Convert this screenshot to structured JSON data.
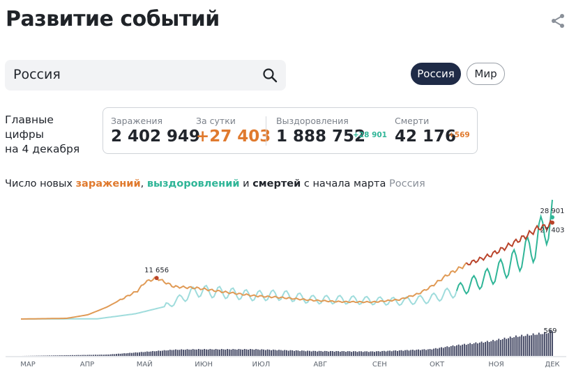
{
  "header": {
    "title": "Развитие событий"
  },
  "search": {
    "value": "Россия"
  },
  "region_tabs": [
    "Россия",
    "Мир"
  ],
  "summary": {
    "lead_line1": "Главные цифры",
    "lead_line2": "на 4 декабря",
    "cases": {
      "label": "Заражения",
      "value": "2 402 949"
    },
    "daily": {
      "label": "За сутки",
      "value": "+27 403"
    },
    "recovered": {
      "label": "Выздоровления",
      "value": "1 888 752",
      "delta": "+28 901"
    },
    "deaths": {
      "label": "Смерти",
      "value": "42 176",
      "delta": "+569"
    }
  },
  "caption": {
    "part1": "Число новых ",
    "infections": "заражений",
    "comma": ", ",
    "recoveries": "выздоровлений",
    "and": " и ",
    "deaths": "смертей",
    "part2": " с начала марта",
    "region": "Россия"
  },
  "colors": {
    "infections": "#e09a55",
    "infections_late": "#b9432a",
    "recoveries_early": "#9fdcdc",
    "recoveries_late": "#2fb597",
    "deaths": "#3a3f5c",
    "infections_text": "#e07a2e",
    "recoveries_text": "#2fb597",
    "accent_dark": "#1f2b47"
  },
  "chart_data": {
    "type": "line",
    "x_range": [
      "2020-03-01",
      "2020-12-04"
    ],
    "month_labels": [
      "МАР",
      "АПР",
      "МАЙ",
      "ИЮН",
      "ИЮЛ",
      "АВГ",
      "СЕН",
      "ОКТ",
      "НОЯ",
      "ДЕК"
    ],
    "infections": {
      "x": [
        "2020-03-01",
        "2020-03-25",
        "2020-04-05",
        "2020-04-15",
        "2020-04-25",
        "2020-05-01",
        "2020-05-05",
        "2020-05-11",
        "2020-05-20",
        "2020-06-01",
        "2020-06-15",
        "2020-07-01",
        "2020-07-15",
        "2020-08-01",
        "2020-08-15",
        "2020-09-01",
        "2020-09-15",
        "2020-09-25",
        "2020-10-01",
        "2020-10-10",
        "2020-10-20",
        "2020-11-01",
        "2020-11-10",
        "2020-11-20",
        "2020-11-27",
        "2020-12-01",
        "2020-12-04"
      ],
      "y": [
        0,
        200,
        1200,
        3400,
        6300,
        8000,
        10500,
        11656,
        9200,
        8800,
        7700,
        6600,
        6100,
        5300,
        4900,
        4800,
        5500,
        7200,
        9000,
        12500,
        15500,
        18000,
        20500,
        23500,
        26000,
        26200,
        27403
      ],
      "peak_label": "11 656",
      "last_label": "27 403"
    },
    "recoveries": {
      "x": [
        "2020-03-01",
        "2020-04-10",
        "2020-04-30",
        "2020-05-15",
        "2020-06-01",
        "2020-06-15",
        "2020-07-01",
        "2020-07-15",
        "2020-08-01",
        "2020-08-15",
        "2020-09-01",
        "2020-09-15",
        "2020-10-01",
        "2020-10-15",
        "2020-11-01",
        "2020-11-15",
        "2020-11-25",
        "2020-12-01",
        "2020-12-04"
      ],
      "y": [
        0,
        50,
        1500,
        3500,
        8000,
        7500,
        6600,
        6800,
        5500,
        5500,
        5200,
        5000,
        5700,
        8000,
        12000,
        16500,
        21000,
        27000,
        28901
      ],
      "last_label": "28 901"
    },
    "deaths": {
      "x": [
        "2020-03-01",
        "2020-04-15",
        "2020-05-01",
        "2020-05-20",
        "2020-06-01",
        "2020-07-01",
        "2020-08-01",
        "2020-09-01",
        "2020-10-01",
        "2020-10-15",
        "2020-11-01",
        "2020-11-15",
        "2020-12-01",
        "2020-12-04"
      ],
      "y": [
        0,
        30,
        80,
        140,
        150,
        150,
        110,
        100,
        150,
        240,
        330,
        440,
        520,
        569
      ],
      "last_label": "569"
    }
  }
}
